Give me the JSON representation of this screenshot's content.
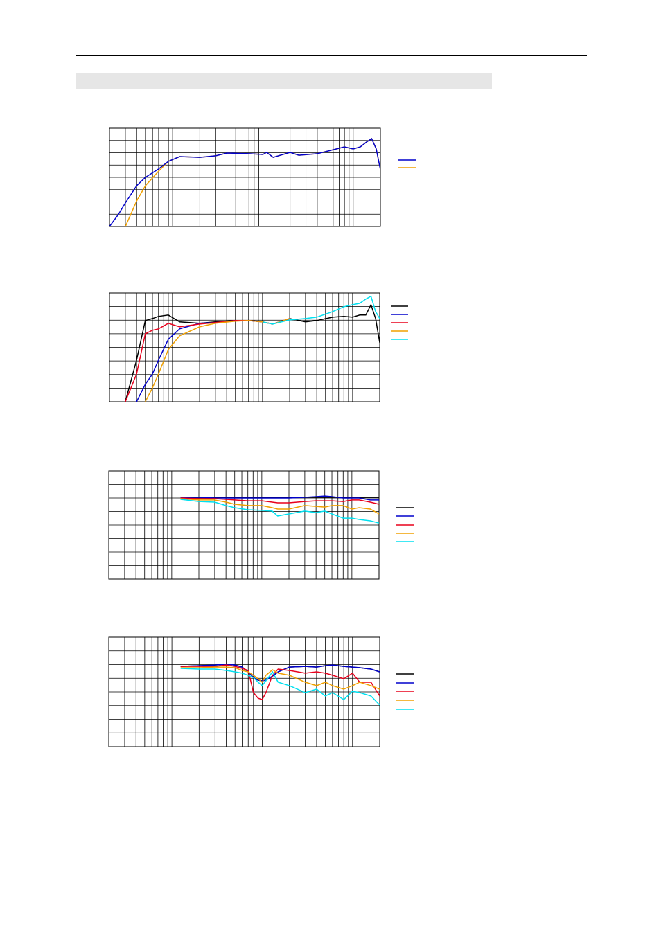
{
  "chart_data": [
    {
      "type": "line",
      "xscale": "log",
      "xlim": [
        20,
        20000
      ],
      "ylim": [
        0,
        8
      ],
      "grid": true,
      "xticks": [
        20,
        30,
        40,
        50,
        60,
        70,
        80,
        90,
        100,
        200,
        300,
        400,
        500,
        600,
        700,
        800,
        900,
        1000,
        2000,
        3000,
        4000,
        5000,
        6000,
        7000,
        8000,
        9000,
        10000,
        20000
      ],
      "yticks": [
        0,
        1,
        2,
        3,
        4,
        5,
        6,
        7,
        8
      ],
      "x": [
        20,
        25,
        30,
        40,
        50,
        70,
        90,
        120,
        200,
        300,
        400,
        700,
        1000,
        1100,
        1300,
        2000,
        2500,
        4000,
        6000,
        8000,
        10000,
        12000,
        14000,
        16000,
        18000,
        20000
      ],
      "series": [
        {
          "color": "#f0a000",
          "values": [
            null,
            null,
            0,
            2.08,
            3.32,
            4.5,
            5.3,
            5.69,
            5.63,
            5.75,
            5.97,
            5.92,
            5.86,
            6.03,
            5.63,
            6.03,
            5.8,
            5.92,
            6.25,
            6.48,
            6.31,
            6.48,
            6.87,
            7.15,
            6.31,
            4.62
          ]
        },
        {
          "color": "#0000cc",
          "values": [
            0,
            0.96,
            1.92,
            3.32,
            4.0,
            4.68,
            5.3,
            5.69,
            5.63,
            5.75,
            5.97,
            5.92,
            5.86,
            6.03,
            5.63,
            6.03,
            5.8,
            5.92,
            6.25,
            6.48,
            6.31,
            6.48,
            6.87,
            7.15,
            6.31,
            4.62
          ]
        }
      ]
    },
    {
      "type": "line",
      "xscale": "log",
      "xlim": [
        20,
        20000
      ],
      "ylim": [
        0,
        8
      ],
      "grid": true,
      "xticks": [
        20,
        30,
        40,
        50,
        60,
        70,
        80,
        90,
        100,
        200,
        300,
        400,
        500,
        600,
        700,
        800,
        900,
        1000,
        2000,
        3000,
        4000,
        5000,
        6000,
        7000,
        8000,
        9000,
        10000,
        20000
      ],
      "yticks": [
        0,
        1,
        2,
        3,
        4,
        5,
        6,
        7,
        8
      ],
      "x": [
        20,
        25,
        30,
        40,
        50,
        60,
        70,
        90,
        120,
        200,
        300,
        500,
        700,
        1000,
        1300,
        2000,
        3000,
        4000,
        6000,
        8000,
        10000,
        12000,
        14000,
        16000,
        18000,
        20000
      ],
      "series": [
        {
          "color": "#000000",
          "values": [
            null,
            null,
            0,
            3.06,
            5.97,
            6.12,
            6.28,
            6.38,
            5.87,
            5.77,
            5.87,
            5.97,
            5.97,
            5.87,
            5.71,
            6.12,
            5.87,
            5.97,
            6.22,
            6.28,
            6.22,
            6.38,
            6.38,
            7.14,
            6.12,
            4.34
          ]
        },
        {
          "color": "#0000cc",
          "values": [
            null,
            null,
            null,
            0,
            1.28,
            2.04,
            3.06,
            4.59,
            5.36,
            5.77,
            5.82,
            5.97,
            5.97,
            5.87,
            5.71,
            6.12,
            null,
            null,
            null,
            null,
            null,
            null,
            null,
            null,
            null,
            null
          ]
        },
        {
          "color": "#e8001c",
          "values": [
            null,
            null,
            0,
            2.04,
            5.0,
            5.26,
            5.36,
            5.77,
            5.51,
            5.71,
            5.82,
            5.97,
            5.97,
            5.87,
            5.71,
            6.12,
            null,
            null,
            null,
            null,
            null,
            null,
            null,
            null,
            null,
            null
          ]
        },
        {
          "color": "#f0a000",
          "values": [
            null,
            null,
            null,
            null,
            0,
            1.02,
            2.04,
            3.83,
            4.85,
            5.51,
            5.77,
            5.92,
            5.97,
            5.87,
            5.71,
            6.12,
            null,
            null,
            null,
            null,
            null,
            null,
            null,
            null,
            null,
            null
          ]
        },
        {
          "color": "#00e0f0",
          "values": [
            null,
            null,
            null,
            null,
            null,
            null,
            null,
            null,
            null,
            null,
            null,
            null,
            null,
            5.87,
            5.71,
            6.02,
            6.12,
            6.22,
            6.63,
            6.99,
            7.14,
            7.24,
            7.55,
            7.76,
            6.63,
            6.12
          ]
        }
      ]
    },
    {
      "type": "line",
      "xscale": "log",
      "xlim": [
        20,
        20000
      ],
      "ylim": [
        0,
        8
      ],
      "grid": true,
      "xticks": [
        20,
        30,
        40,
        50,
        60,
        70,
        80,
        90,
        100,
        200,
        300,
        400,
        500,
        600,
        700,
        800,
        900,
        1000,
        2000,
        3000,
        4000,
        5000,
        6000,
        7000,
        8000,
        9000,
        10000,
        20000
      ],
      "yticks": [
        0,
        1,
        2,
        3,
        4,
        5,
        6,
        7,
        8
      ],
      "x": [
        125,
        200,
        300,
        400,
        500,
        700,
        1000,
        1300,
        1500,
        2000,
        3000,
        4000,
        5000,
        6000,
        8000,
        10000,
        12000,
        16000,
        20000
      ],
      "series": [
        {
          "color": "#000000",
          "values": [
            6.05,
            6.05,
            6.05,
            6.05,
            6.05,
            6.05,
            6.05,
            6.05,
            6.05,
            6.05,
            6.05,
            6.05,
            6.05,
            6.05,
            6.05,
            6.05,
            6.05,
            6.05,
            6.05
          ]
        },
        {
          "color": "#0000cc",
          "values": [
            6.05,
            6.05,
            6.0,
            6.0,
            6.0,
            6.0,
            6.0,
            6.0,
            6.0,
            6.0,
            6.05,
            6.1,
            6.15,
            6.1,
            6.0,
            6.0,
            6.0,
            5.85,
            5.85
          ]
        },
        {
          "color": "#e8001c",
          "values": [
            6.0,
            5.95,
            5.95,
            5.9,
            5.85,
            5.79,
            5.79,
            5.69,
            5.64,
            5.64,
            5.74,
            5.79,
            5.79,
            5.79,
            5.74,
            5.85,
            5.85,
            5.69,
            5.54
          ]
        },
        {
          "color": "#f0a000",
          "values": [
            5.95,
            5.85,
            5.85,
            5.69,
            5.54,
            5.44,
            5.44,
            5.28,
            5.18,
            5.18,
            5.44,
            5.38,
            5.33,
            5.44,
            5.44,
            5.18,
            5.28,
            5.18,
            4.82
          ]
        },
        {
          "color": "#00e0f0",
          "values": [
            5.9,
            5.74,
            5.69,
            5.44,
            5.28,
            5.13,
            5.08,
            5.03,
            4.67,
            4.82,
            5.03,
            4.92,
            5.03,
            4.82,
            4.51,
            4.51,
            4.41,
            4.31,
            4.15
          ]
        }
      ]
    },
    {
      "type": "line",
      "xscale": "log",
      "xlim": [
        20,
        20000
      ],
      "ylim": [
        0,
        8
      ],
      "grid": true,
      "xticks": [
        20,
        30,
        40,
        50,
        60,
        70,
        80,
        90,
        100,
        200,
        300,
        400,
        500,
        600,
        700,
        800,
        900,
        1000,
        2000,
        3000,
        4000,
        5000,
        6000,
        7000,
        8000,
        9000,
        10000,
        20000
      ],
      "yticks": [
        0,
        1,
        2,
        3,
        4,
        5,
        6,
        7,
        8
      ],
      "x": [
        125,
        200,
        300,
        400,
        500,
        600,
        700,
        800,
        900,
        1000,
        1100,
        1300,
        1500,
        2000,
        3000,
        4000,
        5000,
        6000,
        8000,
        10000,
        12000,
        16000,
        20000
      ],
      "series": [
        {
          "color": "#000000",
          "values": [
            5.87,
            5.92,
            5.97,
            6.03,
            5.97,
            5.82,
            5.47,
            5.06,
            4.86,
            4.81,
            4.86,
            5.16,
            5.47,
            5.82,
            5.87,
            5.82,
            5.92,
            5.97,
            5.87,
            5.82,
            5.77,
            5.67,
            5.47
          ]
        },
        {
          "color": "#0000cc",
          "values": [
            5.87,
            5.92,
            5.97,
            6.03,
            5.97,
            5.82,
            5.47,
            5.06,
            4.86,
            4.81,
            4.86,
            5.16,
            5.47,
            5.82,
            5.87,
            5.82,
            5.92,
            5.97,
            5.87,
            5.82,
            5.77,
            5.67,
            5.47
          ]
        },
        {
          "color": "#e8001c",
          "values": [
            5.87,
            5.87,
            5.87,
            5.97,
            5.87,
            5.72,
            5.57,
            3.95,
            3.54,
            3.44,
            3.95,
            5.22,
            5.67,
            5.57,
            5.37,
            5.47,
            5.37,
            5.22,
            4.96,
            5.37,
            4.71,
            4.71,
            3.7
          ]
        },
        {
          "color": "#f0a000",
          "values": [
            5.77,
            5.77,
            5.82,
            5.82,
            5.77,
            5.57,
            5.47,
            5.22,
            4.96,
            4.71,
            5.22,
            5.62,
            5.37,
            5.22,
            4.71,
            4.46,
            4.71,
            4.46,
            4.2,
            4.46,
            4.71,
            4.46,
            4.2
          ]
        },
        {
          "color": "#00e0f0",
          "values": [
            5.72,
            5.67,
            5.67,
            5.57,
            5.47,
            5.37,
            5.22,
            5.06,
            4.71,
            4.46,
            4.81,
            5.47,
            4.71,
            4.46,
            3.95,
            4.2,
            3.7,
            3.95,
            3.44,
            4.05,
            3.95,
            3.7,
            3.04
          ]
        }
      ]
    }
  ]
}
